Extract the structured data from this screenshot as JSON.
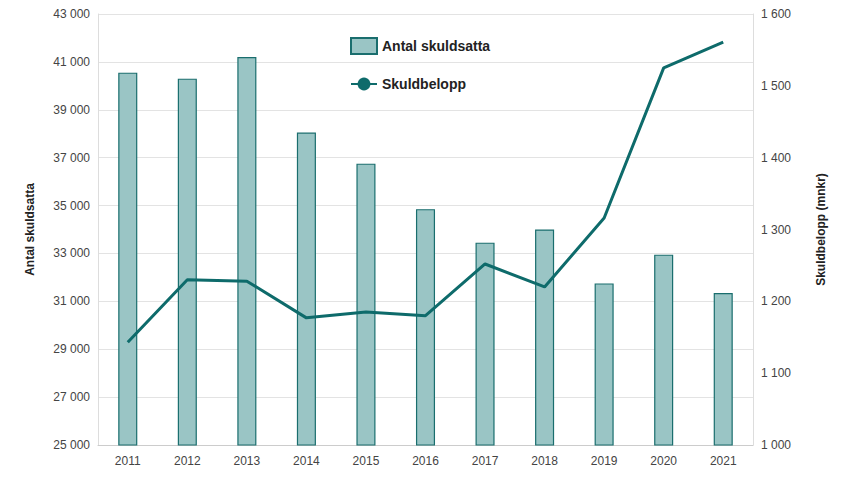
{
  "chart_data": {
    "type": "bar",
    "categories": [
      "2011",
      "2012",
      "2013",
      "2014",
      "2015",
      "2016",
      "2017",
      "2018",
      "2019",
      "2020",
      "2021"
    ],
    "series": [
      {
        "name": "Antal skuldsatta",
        "type": "bar",
        "color": "#9ac5c5",
        "values": [
          40550,
          40300,
          41200,
          38050,
          36750,
          34850,
          33450,
          34000,
          31750,
          32950,
          31350
        ]
      },
      {
        "name": "Skuldbelopp",
        "type": "line",
        "axis": "y2",
        "color": "#0e6b6b",
        "marker": "none",
        "line_style": "solid",
        "values": [
          1143,
          1230,
          1228,
          1177,
          1185,
          1180,
          1252,
          1220,
          1316,
          1525,
          1561
        ]
      }
    ],
    "y_label": "Antal skuldsatta",
    "y2_label": "Skuldbelopp (mnkr)",
    "ylim": [
      25000,
      43000
    ],
    "yticks": [
      {
        "value": 25000,
        "label": "25 000"
      },
      {
        "value": 27000,
        "label": "27 000"
      },
      {
        "value": 29000,
        "label": "29 000"
      },
      {
        "value": 31000,
        "label": "31 000"
      },
      {
        "value": 33000,
        "label": "33 000"
      },
      {
        "value": 35000,
        "label": "35 000"
      },
      {
        "value": 37000,
        "label": "37 000"
      },
      {
        "value": 39000,
        "label": "39 000"
      },
      {
        "value": 41000,
        "label": "41 000"
      },
      {
        "value": 43000,
        "label": "43 000"
      }
    ],
    "y2lim": [
      1000,
      1600
    ],
    "y2ticks": [
      {
        "value": 1000,
        "label": "1 000"
      },
      {
        "value": 1100,
        "label": "1 100"
      },
      {
        "value": 1200,
        "label": "1 200"
      },
      {
        "value": 1300,
        "label": "1 300"
      },
      {
        "value": 1400,
        "label": "1 400"
      },
      {
        "value": 1500,
        "label": "1 500"
      },
      {
        "value": 1600,
        "label": "1 600"
      }
    ],
    "grid": true,
    "legend": "top"
  }
}
